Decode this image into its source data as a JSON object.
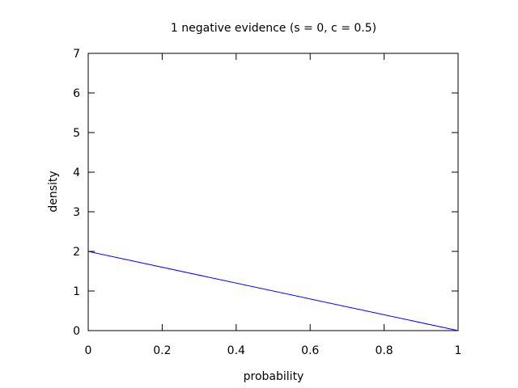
{
  "chart_data": {
    "type": "line",
    "title": "1 negative evidence (s = 0, c = 0.5)",
    "xlabel": "probability",
    "ylabel": "density",
    "xlim": [
      0,
      1
    ],
    "ylim": [
      0,
      7
    ],
    "xticks": [
      0,
      0.2,
      0.4,
      0.6,
      0.8,
      1
    ],
    "xtick_labels": [
      "0",
      "0.2",
      "0.4",
      "0.6",
      "0.8",
      "1"
    ],
    "yticks": [
      0,
      1,
      2,
      3,
      4,
      5,
      6,
      7
    ],
    "ytick_labels": [
      "0",
      "1",
      "2",
      "3",
      "4",
      "5",
      "6",
      "7"
    ],
    "grid": false,
    "series": [
      {
        "color": "#0000ff",
        "x": [
          0,
          1
        ],
        "y": [
          2,
          0
        ]
      }
    ]
  }
}
